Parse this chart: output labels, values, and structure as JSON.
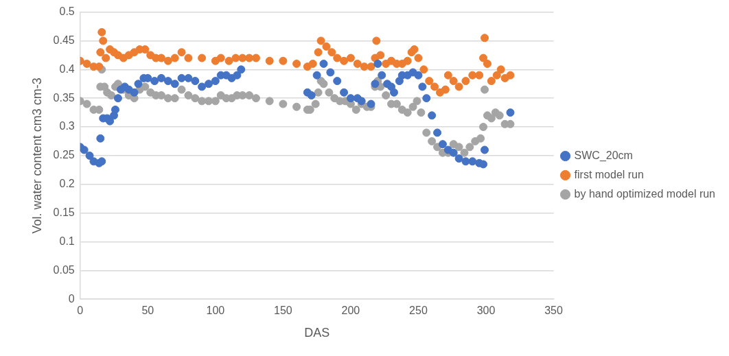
{
  "chart_data": {
    "type": "scatter",
    "xlabel": "DAS",
    "ylabel": "Vol. water content cm3 cm-3",
    "xlim": [
      0,
      350
    ],
    "xticks": [
      0,
      50,
      100,
      150,
      200,
      250,
      300,
      350
    ],
    "ylim": [
      0,
      0.5
    ],
    "yticks": [
      0,
      0.05,
      0.1,
      0.15,
      0.2,
      0.25,
      0.3,
      0.35,
      0.4,
      0.45,
      0.5
    ],
    "grid": "y",
    "legend": "right",
    "marker": "circle",
    "series": [
      {
        "name": "SWC_20cm",
        "color": "#4472c4",
        "x": [
          0,
          3,
          7,
          10,
          14,
          15,
          16,
          17,
          20,
          22,
          25,
          26,
          28,
          30,
          33,
          36,
          40,
          43,
          47,
          50,
          55,
          60,
          65,
          70,
          75,
          80,
          85,
          90,
          95,
          100,
          104,
          108,
          112,
          116,
          119,
          168,
          171,
          175,
          180,
          185,
          190,
          195,
          200,
          205,
          208,
          215,
          218,
          220,
          223,
          227,
          230,
          232,
          236,
          238,
          242,
          246,
          250,
          253,
          256,
          260,
          264,
          268,
          272,
          276,
          280,
          285,
          290,
          295,
          298,
          299,
          318
        ],
        "values": [
          0.265,
          0.26,
          0.25,
          0.24,
          0.237,
          0.28,
          0.24,
          0.315,
          0.315,
          0.31,
          0.32,
          0.33,
          0.35,
          0.365,
          0.37,
          0.365,
          0.36,
          0.375,
          0.385,
          0.385,
          0.38,
          0.385,
          0.38,
          0.375,
          0.385,
          0.385,
          0.38,
          0.37,
          0.375,
          0.38,
          0.39,
          0.39,
          0.385,
          0.39,
          0.4,
          0.36,
          0.355,
          0.39,
          0.41,
          0.395,
          0.38,
          0.36,
          0.35,
          0.35,
          0.345,
          0.34,
          0.375,
          0.41,
          0.39,
          0.375,
          0.37,
          0.36,
          0.38,
          0.39,
          0.39,
          0.395,
          0.39,
          0.37,
          0.35,
          0.32,
          0.29,
          0.27,
          0.26,
          0.255,
          0.245,
          0.24,
          0.24,
          0.237,
          0.235,
          0.26,
          0.325
        ]
      },
      {
        "name": "first model run",
        "color": "#ed7d31",
        "x": [
          0,
          5,
          10,
          14,
          15,
          16,
          17,
          19,
          22,
          25,
          28,
          32,
          36,
          40,
          44,
          48,
          52,
          56,
          60,
          65,
          70,
          75,
          80,
          90,
          100,
          104,
          110,
          115,
          120,
          125,
          130,
          140,
          150,
          160,
          168,
          172,
          176,
          178,
          182,
          186,
          190,
          195,
          200,
          205,
          210,
          215,
          218,
          219,
          222,
          226,
          230,
          234,
          238,
          242,
          245,
          247,
          250,
          254,
          258,
          262,
          266,
          270,
          272,
          276,
          280,
          285,
          290,
          295,
          298,
          299,
          301,
          304,
          308,
          311,
          314,
          318
        ],
        "values": [
          0.415,
          0.41,
          0.405,
          0.405,
          0.43,
          0.465,
          0.45,
          0.42,
          0.435,
          0.43,
          0.425,
          0.42,
          0.425,
          0.43,
          0.435,
          0.435,
          0.425,
          0.42,
          0.42,
          0.415,
          0.42,
          0.43,
          0.42,
          0.42,
          0.415,
          0.42,
          0.415,
          0.42,
          0.42,
          0.42,
          0.42,
          0.415,
          0.415,
          0.41,
          0.405,
          0.41,
          0.43,
          0.45,
          0.44,
          0.43,
          0.42,
          0.415,
          0.42,
          0.41,
          0.405,
          0.405,
          0.42,
          0.45,
          0.425,
          0.41,
          0.415,
          0.41,
          0.41,
          0.415,
          0.43,
          0.435,
          0.42,
          0.4,
          0.38,
          0.37,
          0.36,
          0.365,
          0.39,
          0.38,
          0.37,
          0.38,
          0.39,
          0.39,
          0.42,
          0.455,
          0.41,
          0.38,
          0.39,
          0.4,
          0.385,
          0.39
        ]
      },
      {
        "name": "by hand optimized model run",
        "color": "#a5a5a5",
        "x": [
          0,
          5,
          10,
          14,
          15,
          16,
          18,
          20,
          23,
          26,
          28,
          32,
          36,
          40,
          44,
          48,
          52,
          56,
          60,
          65,
          70,
          75,
          80,
          85,
          90,
          95,
          100,
          104,
          108,
          112,
          116,
          120,
          125,
          130,
          140,
          150,
          160,
          168,
          170,
          174,
          176,
          178,
          180,
          184,
          188,
          192,
          196,
          200,
          204,
          208,
          212,
          215,
          218,
          220,
          222,
          226,
          230,
          234,
          238,
          242,
          246,
          249,
          252,
          256,
          260,
          264,
          268,
          272,
          276,
          280,
          284,
          288,
          292,
          296,
          298,
          299,
          301,
          304,
          307,
          310,
          314,
          318
        ],
        "values": [
          0.345,
          0.34,
          0.33,
          0.33,
          0.37,
          0.4,
          0.37,
          0.36,
          0.355,
          0.37,
          0.375,
          0.365,
          0.355,
          0.35,
          0.365,
          0.37,
          0.36,
          0.355,
          0.355,
          0.35,
          0.35,
          0.365,
          0.355,
          0.35,
          0.345,
          0.345,
          0.345,
          0.355,
          0.35,
          0.35,
          0.355,
          0.355,
          0.355,
          0.35,
          0.345,
          0.34,
          0.335,
          0.33,
          0.33,
          0.34,
          0.36,
          0.38,
          0.375,
          0.36,
          0.35,
          0.345,
          0.345,
          0.34,
          0.33,
          0.34,
          0.335,
          0.335,
          0.37,
          0.38,
          0.37,
          0.355,
          0.34,
          0.34,
          0.33,
          0.325,
          0.335,
          0.345,
          0.325,
          0.29,
          0.275,
          0.265,
          0.255,
          0.255,
          0.27,
          0.265,
          0.255,
          0.265,
          0.275,
          0.28,
          0.3,
          0.365,
          0.32,
          0.315,
          0.325,
          0.32,
          0.305,
          0.305
        ]
      }
    ]
  }
}
